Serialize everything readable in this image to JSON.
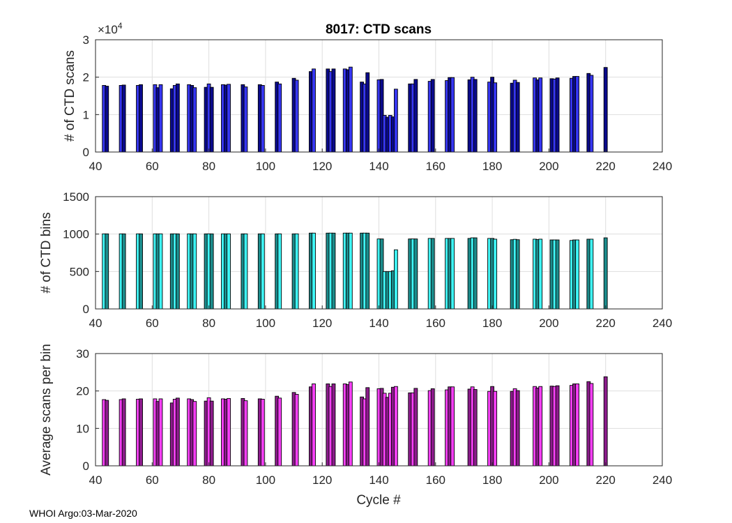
{
  "figure": {
    "title": "8017: CTD scans",
    "xlabel": "Cycle #",
    "footer": "WHOI Argo:03-Mar-2020",
    "scale_base": "×10",
    "scale_exp": "4"
  },
  "chart_data": [
    {
      "type": "bar",
      "ylabel": "# of CTD scans",
      "xlim": [
        40,
        240
      ],
      "ylim": [
        0,
        3
      ],
      "scale_note": "×10^4",
      "xticks": [
        40,
        60,
        80,
        100,
        120,
        140,
        160,
        180,
        200,
        220,
        240
      ],
      "yticks": [
        0,
        1,
        2,
        3
      ],
      "colors": [
        "#3636f2",
        "#0a0a8c"
      ],
      "x": [
        43,
        44,
        49,
        50,
        55,
        56,
        61,
        62,
        63,
        67,
        68,
        69,
        73,
        74,
        75,
        79,
        80,
        81,
        85,
        86,
        87,
        92,
        93,
        98,
        99,
        104,
        105,
        110,
        111,
        116,
        117,
        122,
        123,
        124,
        128,
        129,
        130,
        134,
        135,
        136,
        140,
        141,
        142,
        143,
        144,
        145,
        146,
        151,
        152,
        153,
        158,
        159,
        164,
        165,
        166,
        172,
        173,
        174,
        179,
        180,
        181,
        187,
        188,
        189,
        195,
        196,
        197,
        201,
        202,
        203,
        208,
        209,
        210,
        214,
        215,
        220
      ],
      "values": [
        1.78,
        1.76,
        1.78,
        1.79,
        1.78,
        1.8,
        1.8,
        1.72,
        1.8,
        1.69,
        1.78,
        1.82,
        1.8,
        1.78,
        1.72,
        1.73,
        1.82,
        1.73,
        1.8,
        1.79,
        1.81,
        1.8,
        1.74,
        1.8,
        1.78,
        1.87,
        1.82,
        1.97,
        1.92,
        2.15,
        2.22,
        2.22,
        2.15,
        2.22,
        2.22,
        2.2,
        2.27,
        1.87,
        1.82,
        2.12,
        1.93,
        1.94,
        0.98,
        0.93,
        0.98,
        0.94,
        1.68,
        1.82,
        1.82,
        1.94,
        1.89,
        1.94,
        1.91,
        1.99,
        1.99,
        1.93,
        2.0,
        1.94,
        1.87,
        2.0,
        1.85,
        1.84,
        1.92,
        1.86,
        1.98,
        1.93,
        1.98,
        1.96,
        1.95,
        1.98,
        1.97,
        2.02,
        2.02,
        2.1,
        2.05,
        2.26
      ]
    },
    {
      "type": "bar",
      "ylabel": "# of CTD bins",
      "xlim": [
        40,
        240
      ],
      "ylim": [
        0,
        1500
      ],
      "xticks": [
        40,
        60,
        80,
        100,
        120,
        140,
        160,
        180,
        200,
        220,
        240
      ],
      "yticks": [
        0,
        500,
        1000,
        1500
      ],
      "colors": [
        "#3ff5f5",
        "#1c8c8c"
      ],
      "x": [
        43,
        44,
        49,
        50,
        55,
        56,
        61,
        62,
        63,
        67,
        68,
        69,
        73,
        74,
        75,
        79,
        80,
        81,
        85,
        86,
        87,
        92,
        93,
        98,
        99,
        104,
        105,
        110,
        111,
        116,
        117,
        122,
        123,
        124,
        128,
        129,
        130,
        134,
        135,
        136,
        140,
        141,
        142,
        143,
        144,
        145,
        146,
        151,
        152,
        153,
        158,
        159,
        164,
        165,
        166,
        172,
        173,
        174,
        179,
        180,
        181,
        187,
        188,
        189,
        195,
        196,
        197,
        201,
        202,
        203,
        208,
        209,
        210,
        214,
        215,
        220
      ],
      "values": [
        1003,
        1003,
        1003,
        1003,
        1003,
        1003,
        1003,
        1003,
        1003,
        1003,
        1003,
        1003,
        1003,
        1003,
        1003,
        1003,
        1003,
        1003,
        1003,
        1003,
        1003,
        1003,
        1003,
        1003,
        1003,
        1003,
        1003,
        1003,
        1003,
        1013,
        1013,
        1013,
        1013,
        1013,
        1013,
        1013,
        1013,
        1013,
        1013,
        1013,
        935,
        935,
        500,
        500,
        500,
        510,
        790,
        935,
        935,
        935,
        942,
        942,
        942,
        942,
        942,
        942,
        950,
        950,
        942,
        942,
        932,
        925,
        930,
        925,
        932,
        927,
        932,
        922,
        922,
        922,
        915,
        922,
        922,
        932,
        932,
        950
      ]
    },
    {
      "type": "bar",
      "ylabel": "Average scans per bin",
      "xlabel": "Cycle #",
      "xlim": [
        40,
        240
      ],
      "ylim": [
        0,
        30
      ],
      "xticks": [
        40,
        60,
        80,
        100,
        120,
        140,
        160,
        180,
        200,
        220,
        240
      ],
      "yticks": [
        0,
        10,
        20,
        30
      ],
      "colors": [
        "#f53ff5",
        "#8c1c8c"
      ],
      "x": [
        43,
        44,
        49,
        50,
        55,
        56,
        61,
        62,
        63,
        67,
        68,
        69,
        73,
        74,
        75,
        79,
        80,
        81,
        85,
        86,
        87,
        92,
        93,
        98,
        99,
        104,
        105,
        110,
        111,
        116,
        117,
        122,
        123,
        124,
        128,
        129,
        130,
        134,
        135,
        136,
        140,
        141,
        142,
        143,
        144,
        145,
        146,
        151,
        152,
        153,
        158,
        159,
        164,
        165,
        166,
        172,
        173,
        174,
        179,
        180,
        181,
        187,
        188,
        189,
        195,
        196,
        197,
        201,
        202,
        203,
        208,
        209,
        210,
        214,
        215,
        220
      ],
      "values": [
        17.7,
        17.5,
        17.7,
        17.9,
        17.8,
        17.9,
        17.9,
        17.2,
        17.9,
        16.8,
        17.8,
        18.1,
        17.9,
        17.7,
        17.2,
        17.3,
        18.2,
        17.3,
        17.9,
        17.8,
        18.0,
        18.0,
        17.4,
        17.9,
        17.8,
        18.6,
        18.1,
        19.6,
        19.1,
        21.1,
        21.9,
        21.9,
        21.2,
        21.9,
        21.9,
        21.7,
        22.4,
        18.4,
        17.9,
        20.9,
        20.6,
        20.7,
        19.4,
        18.3,
        19.4,
        21.0,
        21.2,
        19.5,
        19.5,
        20.7,
        20.1,
        20.6,
        20.3,
        21.1,
        21.1,
        20.5,
        21.1,
        20.4,
        19.9,
        21.2,
        19.9,
        19.9,
        20.6,
        20.1,
        21.2,
        20.8,
        21.2,
        21.3,
        21.2,
        21.4,
        21.5,
        21.9,
        21.9,
        22.5,
        22.0,
        23.8
      ]
    }
  ]
}
